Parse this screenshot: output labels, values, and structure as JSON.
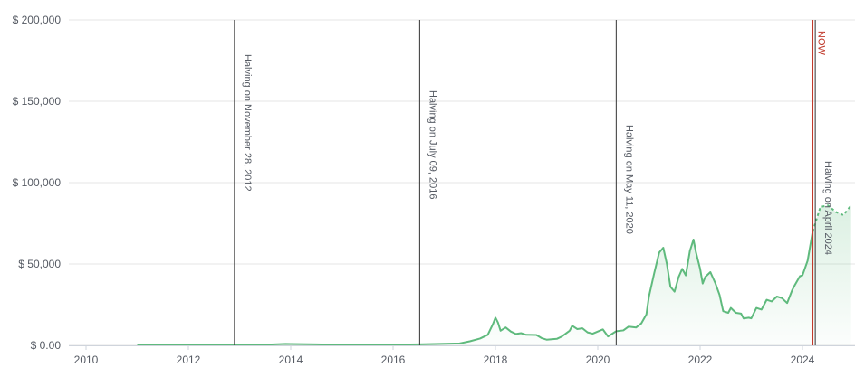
{
  "chart_data": {
    "type": "area",
    "title": "",
    "xlabel": "",
    "ylabel": "",
    "xlim": [
      2010,
      2024.95
    ],
    "ylim": [
      0,
      200000
    ],
    "grid": true,
    "y_ticks": [
      {
        "value": 0,
        "label": "$ 0.00"
      },
      {
        "value": 50000,
        "label": "$ 50,000"
      },
      {
        "value": 100000,
        "label": "$ 100,000"
      },
      {
        "value": 150000,
        "label": "$ 150,000"
      },
      {
        "value": 200000,
        "label": "$ 200,000"
      }
    ],
    "x_ticks": [
      {
        "value": 2010,
        "label": "2010"
      },
      {
        "value": 2012,
        "label": "2012"
      },
      {
        "value": 2014,
        "label": "2014"
      },
      {
        "value": 2016,
        "label": "2016"
      },
      {
        "value": 2018,
        "label": "2018"
      },
      {
        "value": 2020,
        "label": "2020"
      },
      {
        "value": 2022,
        "label": "2022"
      },
      {
        "value": 2024,
        "label": "2024"
      }
    ],
    "events": [
      {
        "x": 2012.9,
        "label": "Halving on November 28, 2012",
        "color": "#333333"
      },
      {
        "x": 2016.52,
        "label": "Halving on July 09, 2016",
        "color": "#333333"
      },
      {
        "x": 2020.36,
        "label": "Halving on May 11, 2020",
        "color": "#333333"
      },
      {
        "x": 2024.25,
        "label": "Halving on April 2024",
        "color": "#333333"
      }
    ],
    "now_marker": {
      "x": 2024.2,
      "label": "NOW",
      "color": "#c0392b"
    },
    "series": [
      {
        "color": "#5fba7d",
        "values": [
          [
            2011.0,
            5
          ],
          [
            2012.0,
            5
          ],
          [
            2012.9,
            12
          ],
          [
            2013.3,
            130
          ],
          [
            2013.9,
            900
          ],
          [
            2014.0,
            800
          ],
          [
            2014.5,
            600
          ],
          [
            2015.0,
            250
          ],
          [
            2015.5,
            250
          ],
          [
            2016.0,
            400
          ],
          [
            2016.5,
            650
          ],
          [
            2017.0,
            1000
          ],
          [
            2017.3,
            1200
          ],
          [
            2017.5,
            2500
          ],
          [
            2017.7,
            4200
          ],
          [
            2017.85,
            6500
          ],
          [
            2017.95,
            13000
          ],
          [
            2018.0,
            17000
          ],
          [
            2018.05,
            14000
          ],
          [
            2018.1,
            9000
          ],
          [
            2018.2,
            11000
          ],
          [
            2018.3,
            8500
          ],
          [
            2018.4,
            7000
          ],
          [
            2018.5,
            7500
          ],
          [
            2018.6,
            6500
          ],
          [
            2018.8,
            6400
          ],
          [
            2018.9,
            4500
          ],
          [
            2019.0,
            3500
          ],
          [
            2019.2,
            4000
          ],
          [
            2019.3,
            5500
          ],
          [
            2019.45,
            9000
          ],
          [
            2019.5,
            12000
          ],
          [
            2019.6,
            10000
          ],
          [
            2019.7,
            10500
          ],
          [
            2019.8,
            8000
          ],
          [
            2019.9,
            7200
          ],
          [
            2020.0,
            8500
          ],
          [
            2020.1,
            9800
          ],
          [
            2020.2,
            5500
          ],
          [
            2020.3,
            7500
          ],
          [
            2020.36,
            8700
          ],
          [
            2020.5,
            9200
          ],
          [
            2020.6,
            11500
          ],
          [
            2020.75,
            11000
          ],
          [
            2020.85,
            13500
          ],
          [
            2020.95,
            19000
          ],
          [
            2021.0,
            30000
          ],
          [
            2021.1,
            44000
          ],
          [
            2021.2,
            57000
          ],
          [
            2021.28,
            60000
          ],
          [
            2021.35,
            50000
          ],
          [
            2021.42,
            36000
          ],
          [
            2021.5,
            33000
          ],
          [
            2021.58,
            42000
          ],
          [
            2021.65,
            47000
          ],
          [
            2021.72,
            43000
          ],
          [
            2021.8,
            58000
          ],
          [
            2021.87,
            65000
          ],
          [
            2021.92,
            57000
          ],
          [
            2022.0,
            47000
          ],
          [
            2022.05,
            38000
          ],
          [
            2022.1,
            42000
          ],
          [
            2022.2,
            45000
          ],
          [
            2022.3,
            38000
          ],
          [
            2022.38,
            31000
          ],
          [
            2022.45,
            21000
          ],
          [
            2022.55,
            20000
          ],
          [
            2022.6,
            23000
          ],
          [
            2022.7,
            20000
          ],
          [
            2022.8,
            19500
          ],
          [
            2022.85,
            16500
          ],
          [
            2022.95,
            17000
          ],
          [
            2023.0,
            16600
          ],
          [
            2023.1,
            23000
          ],
          [
            2023.2,
            22000
          ],
          [
            2023.3,
            28000
          ],
          [
            2023.4,
            27000
          ],
          [
            2023.5,
            30000
          ],
          [
            2023.6,
            29000
          ],
          [
            2023.7,
            26000
          ],
          [
            2023.8,
            34000
          ],
          [
            2023.85,
            37000
          ],
          [
            2023.95,
            42500
          ],
          [
            2024.0,
            43000
          ],
          [
            2024.1,
            52000
          ],
          [
            2024.2,
            70000
          ]
        ]
      },
      {
        "color": "#5fba7d",
        "dashed": true,
        "values": [
          [
            2024.2,
            70000
          ],
          [
            2024.35,
            85000
          ],
          [
            2024.5,
            86000
          ],
          [
            2024.65,
            82000
          ],
          [
            2024.8,
            80000
          ],
          [
            2024.95,
            86000
          ]
        ]
      }
    ]
  }
}
